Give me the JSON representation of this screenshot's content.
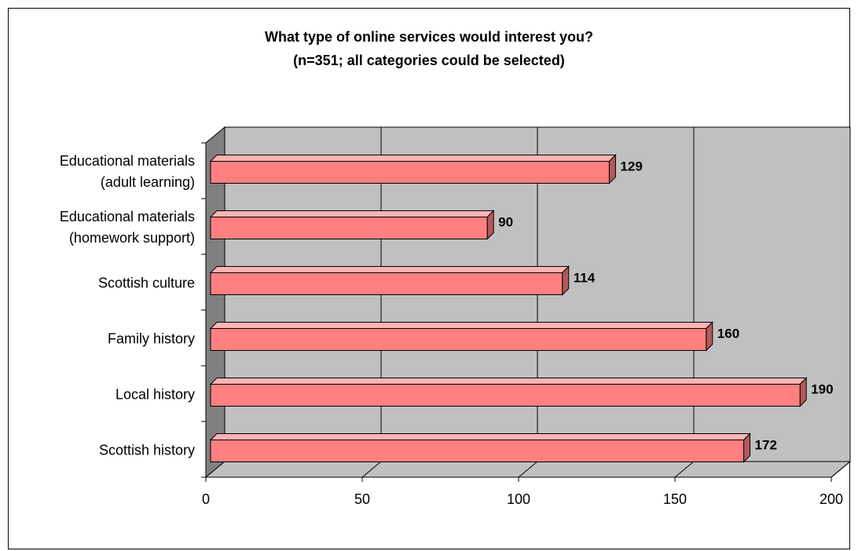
{
  "chart_data": {
    "type": "bar",
    "orientation": "horizontal",
    "title": "What type of online services would interest you?",
    "subtitle": "(n=351; all categories could be selected)",
    "categories": [
      [
        "Educational materials",
        "(adult learning)"
      ],
      [
        "Educational materials",
        "(homework support)"
      ],
      [
        "Scottish culture"
      ],
      [
        "Family history"
      ],
      [
        "Local history"
      ],
      [
        "Scottish history"
      ]
    ],
    "values": [
      129,
      90,
      114,
      160,
      190,
      172
    ],
    "xlim": [
      0,
      200
    ],
    "xticks": [
      "0",
      "50",
      "100",
      "150",
      "200"
    ],
    "grid": true,
    "colors": {
      "bar_front": "#ff8080",
      "bar_top": "#ffb3b3",
      "bar_side": "#b35a5a",
      "plot_back": "#c0c0c0",
      "plot_left_wall": "#808080",
      "plot_floor": "#c0c0c0"
    }
  }
}
